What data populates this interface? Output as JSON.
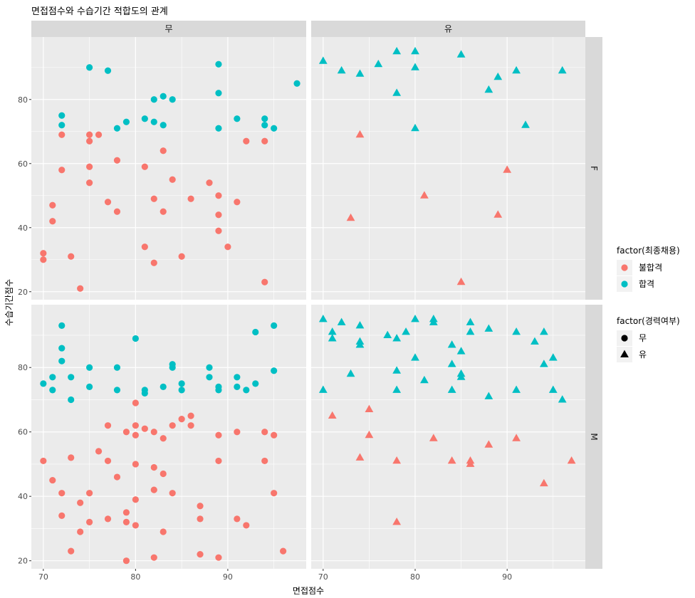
{
  "chart_data": {
    "type": "scatter",
    "title": "면접점수와 수습기간 적합도의 관계",
    "xlabel": "면접점수",
    "ylabel": "수습기간점수",
    "xlim": [
      68.7,
      98.5
    ],
    "ylim": [
      17.5,
      99.5
    ],
    "x_ticks": [
      "70",
      "80",
      "90"
    ],
    "y_ticks": [
      "20",
      "40",
      "60",
      "80"
    ],
    "grid": true,
    "facets": {
      "cols": [
        "무",
        "유"
      ],
      "rows": [
        "F",
        "M"
      ]
    },
    "legend": [
      {
        "title": "factor(최종채용)",
        "position": "right",
        "entries": [
          {
            "label": "불합격",
            "color": "#F8766D"
          },
          {
            "label": "합격",
            "color": "#00BFC4"
          }
        ]
      },
      {
        "title": "factor(경력여부)",
        "position": "right",
        "entries": [
          {
            "label": "무",
            "shape": "circle"
          },
          {
            "label": "유",
            "shape": "triangle"
          }
        ]
      }
    ],
    "panels": [
      {
        "row": "F",
        "col": "무",
        "shape": "circle",
        "series": [
          {
            "name": "불합격",
            "color": "#F8766D",
            "points": [
              [
                70,
                32
              ],
              [
                70,
                30
              ],
              [
                71,
                47
              ],
              [
                71,
                42
              ],
              [
                72,
                69
              ],
              [
                72,
                58
              ],
              [
                73,
                31
              ],
              [
                74,
                21
              ],
              [
                75,
                69
              ],
              [
                75,
                67
              ],
              [
                75,
                59
              ],
              [
                75,
                54
              ],
              [
                76,
                69
              ],
              [
                77,
                48
              ],
              [
                78,
                61
              ],
              [
                78,
                45
              ],
              [
                81,
                59
              ],
              [
                81,
                34
              ],
              [
                82,
                49
              ],
              [
                82,
                29
              ],
              [
                83,
                64
              ],
              [
                83,
                45
              ],
              [
                84,
                55
              ],
              [
                85,
                31
              ],
              [
                86,
                49
              ],
              [
                88,
                54
              ],
              [
                89,
                50
              ],
              [
                89,
                44
              ],
              [
                89,
                39
              ],
              [
                90,
                34
              ],
              [
                91,
                48
              ],
              [
                92,
                67
              ],
              [
                94,
                67
              ],
              [
                94,
                23
              ]
            ]
          },
          {
            "name": "합격",
            "color": "#00BFC4",
            "points": [
              [
                72,
                75
              ],
              [
                72,
                72
              ],
              [
                75,
                90
              ],
              [
                77,
                89
              ],
              [
                78,
                71
              ],
              [
                79,
                73
              ],
              [
                81,
                74
              ],
              [
                82,
                73
              ],
              [
                82,
                80
              ],
              [
                83,
                81
              ],
              [
                83,
                72
              ],
              [
                84,
                80
              ],
              [
                89,
                91
              ],
              [
                89,
                82
              ],
              [
                89,
                71
              ],
              [
                91,
                74
              ],
              [
                94,
                74
              ],
              [
                94,
                72
              ],
              [
                95,
                71
              ],
              [
                97.5,
                85
              ]
            ]
          }
        ]
      },
      {
        "row": "F",
        "col": "유",
        "shape": "triangle",
        "series": [
          {
            "name": "불합격",
            "color": "#F8766D",
            "points": [
              [
                73,
                43
              ],
              [
                74,
                69
              ],
              [
                81,
                50
              ],
              [
                85,
                23
              ],
              [
                89,
                44
              ],
              [
                90,
                58
              ]
            ]
          },
          {
            "name": "합격",
            "color": "#00BFC4",
            "points": [
              [
                70,
                92
              ],
              [
                72,
                89
              ],
              [
                74,
                88
              ],
              [
                76,
                91
              ],
              [
                78,
                95
              ],
              [
                78,
                82
              ],
              [
                80,
                95
              ],
              [
                80,
                90
              ],
              [
                80,
                71
              ],
              [
                85,
                94
              ],
              [
                88,
                83
              ],
              [
                89,
                87
              ],
              [
                91,
                89
              ],
              [
                92,
                72
              ],
              [
                96,
                89
              ]
            ]
          }
        ]
      },
      {
        "row": "M",
        "col": "무",
        "shape": "circle",
        "series": [
          {
            "name": "불합격",
            "color": "#F8766D",
            "points": [
              [
                70,
                51
              ],
              [
                71,
                45
              ],
              [
                72,
                41
              ],
              [
                72,
                34
              ],
              [
                73,
                52
              ],
              [
                73,
                23
              ],
              [
                74,
                38
              ],
              [
                74,
                29
              ],
              [
                75,
                41
              ],
              [
                75,
                32
              ],
              [
                76,
                54
              ],
              [
                77,
                62
              ],
              [
                77,
                51
              ],
              [
                77,
                33
              ],
              [
                78,
                46
              ],
              [
                79,
                60
              ],
              [
                79,
                35
              ],
              [
                79,
                32
              ],
              [
                79,
                20
              ],
              [
                80,
                69
              ],
              [
                80,
                62
              ],
              [
                80,
                59
              ],
              [
                80,
                50
              ],
              [
                80,
                39
              ],
              [
                80,
                31
              ],
              [
                81,
                61
              ],
              [
                82,
                60
              ],
              [
                82,
                49
              ],
              [
                82,
                42
              ],
              [
                82,
                21
              ],
              [
                83,
                58
              ],
              [
                83,
                47
              ],
              [
                83,
                29
              ],
              [
                84,
                62
              ],
              [
                84,
                41
              ],
              [
                85,
                64
              ],
              [
                86,
                65
              ],
              [
                86,
                62
              ],
              [
                87,
                37
              ],
              [
                87,
                33
              ],
              [
                87,
                22
              ],
              [
                89,
                59
              ],
              [
                89,
                51
              ],
              [
                89,
                21
              ],
              [
                91,
                60
              ],
              [
                91,
                33
              ],
              [
                92,
                31
              ],
              [
                94,
                60
              ],
              [
                94,
                51
              ],
              [
                95,
                59
              ],
              [
                95,
                41
              ],
              [
                96,
                23
              ]
            ]
          },
          {
            "name": "합격",
            "color": "#00BFC4",
            "points": [
              [
                70,
                75
              ],
              [
                71,
                77
              ],
              [
                71,
                73
              ],
              [
                72,
                93
              ],
              [
                72,
                86
              ],
              [
                72,
                82
              ],
              [
                73,
                77
              ],
              [
                73,
                70
              ],
              [
                75,
                80
              ],
              [
                75,
                74
              ],
              [
                78,
                80
              ],
              [
                78,
                73
              ],
              [
                80,
                89
              ],
              [
                81,
                73
              ],
              [
                81,
                72
              ],
              [
                83,
                74
              ],
              [
                84,
                81
              ],
              [
                84,
                80
              ],
              [
                85,
                75
              ],
              [
                85,
                73
              ],
              [
                88,
                80
              ],
              [
                88,
                77
              ],
              [
                89,
                74
              ],
              [
                89,
                73
              ],
              [
                91,
                77
              ],
              [
                91,
                74
              ],
              [
                92,
                73
              ],
              [
                93,
                91
              ],
              [
                93,
                75
              ],
              [
                95,
                93
              ],
              [
                95,
                79
              ]
            ]
          }
        ]
      },
      {
        "row": "M",
        "col": "유",
        "shape": "triangle",
        "series": [
          {
            "name": "불합격",
            "color": "#F8766D",
            "points": [
              [
                71,
                65
              ],
              [
                74,
                52
              ],
              [
                75,
                67
              ],
              [
                75,
                59
              ],
              [
                78,
                51
              ],
              [
                78,
                32
              ],
              [
                82,
                58
              ],
              [
                84,
                51
              ],
              [
                86,
                51
              ],
              [
                86,
                50
              ],
              [
                88,
                56
              ],
              [
                91,
                58
              ],
              [
                94,
                44
              ],
              [
                97,
                51
              ]
            ]
          },
          {
            "name": "합격",
            "color": "#00BFC4",
            "points": [
              [
                70,
                95
              ],
              [
                70,
                73
              ],
              [
                71,
                91
              ],
              [
                71,
                89
              ],
              [
                72,
                94
              ],
              [
                73,
                78
              ],
              [
                74,
                93
              ],
              [
                74,
                88
              ],
              [
                74,
                87
              ],
              [
                77,
                90
              ],
              [
                78,
                89
              ],
              [
                78,
                79
              ],
              [
                78,
                73
              ],
              [
                79,
                91
              ],
              [
                80,
                95
              ],
              [
                80,
                83
              ],
              [
                81,
                76
              ],
              [
                82,
                95
              ],
              [
                82,
                94
              ],
              [
                84,
                87
              ],
              [
                84,
                81
              ],
              [
                84,
                73
              ],
              [
                85,
                85
              ],
              [
                85,
                78
              ],
              [
                85,
                77
              ],
              [
                86,
                94
              ],
              [
                86,
                91
              ],
              [
                88,
                92
              ],
              [
                88,
                71
              ],
              [
                91,
                91
              ],
              [
                91,
                73
              ],
              [
                93,
                88
              ],
              [
                94,
                91
              ],
              [
                94,
                81
              ],
              [
                95,
                83
              ],
              [
                95,
                73
              ],
              [
                96,
                70
              ]
            ]
          }
        ]
      }
    ]
  }
}
